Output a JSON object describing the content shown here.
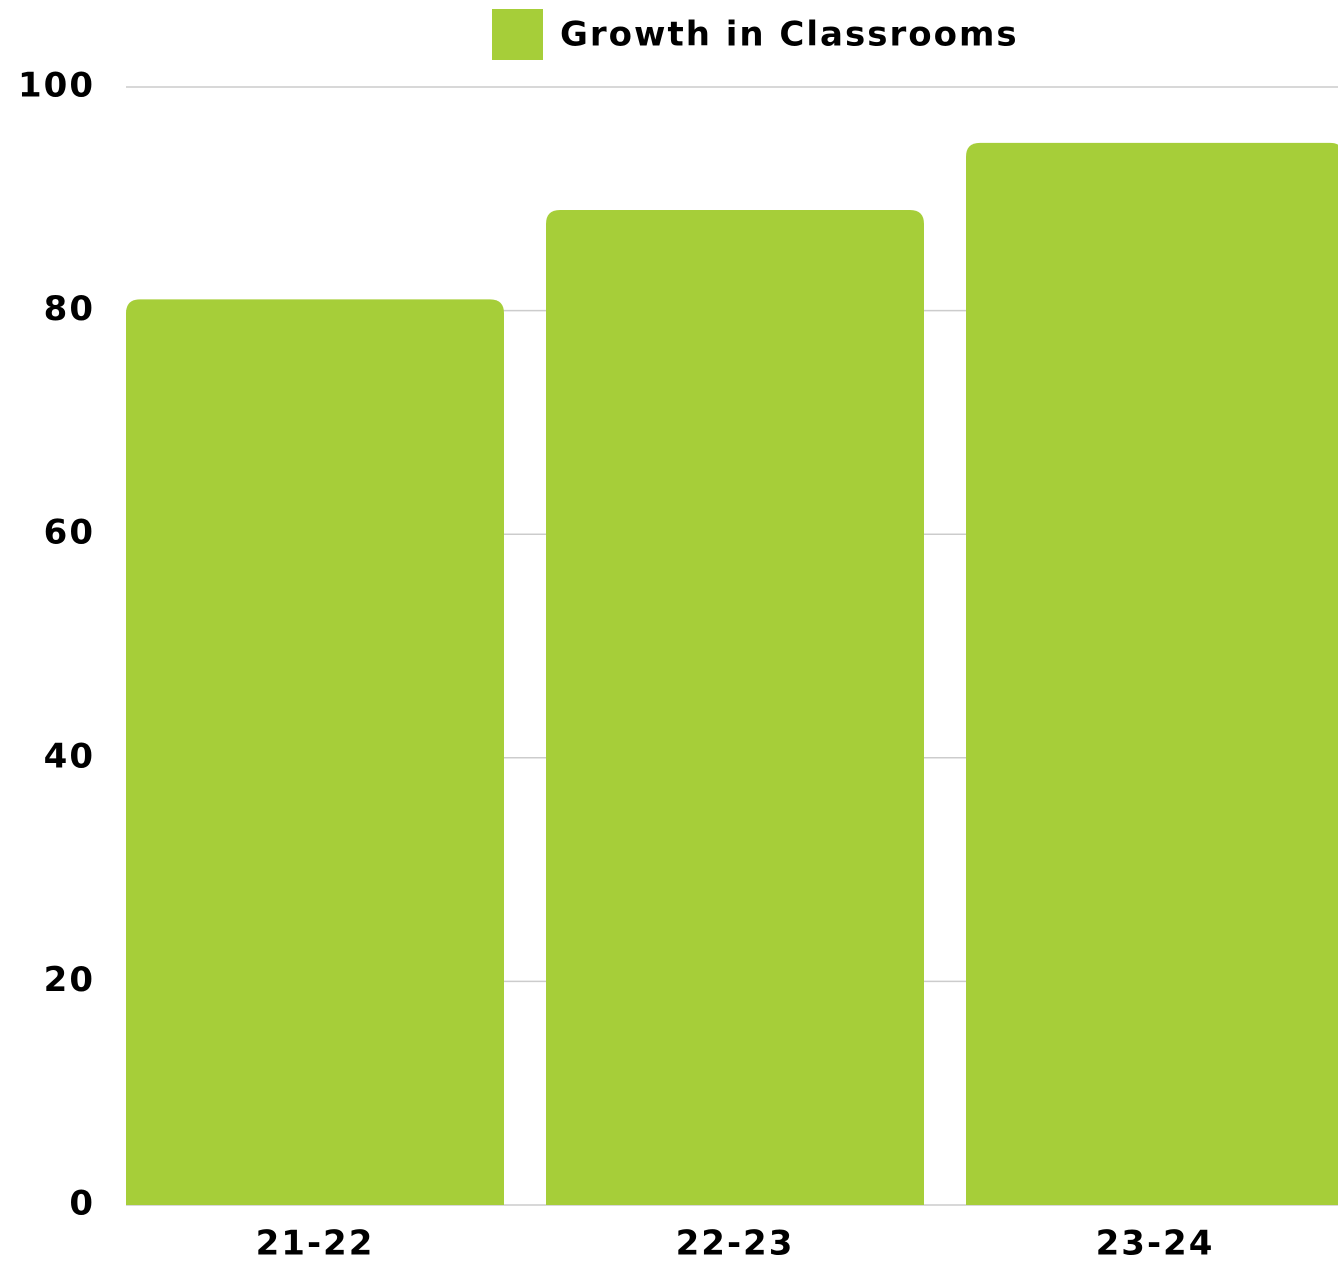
{
  "chart_data": {
    "type": "bar",
    "categories": [
      "21-22",
      "22-23",
      "23-24"
    ],
    "series": [
      {
        "name": "Growth in Classrooms",
        "color": "#a6ce39",
        "values": [
          81,
          89,
          95
        ]
      }
    ],
    "ylim": [
      0,
      100
    ],
    "yticks": [
      0,
      20,
      40,
      60,
      80,
      100
    ],
    "grid": true,
    "legend": "top"
  }
}
